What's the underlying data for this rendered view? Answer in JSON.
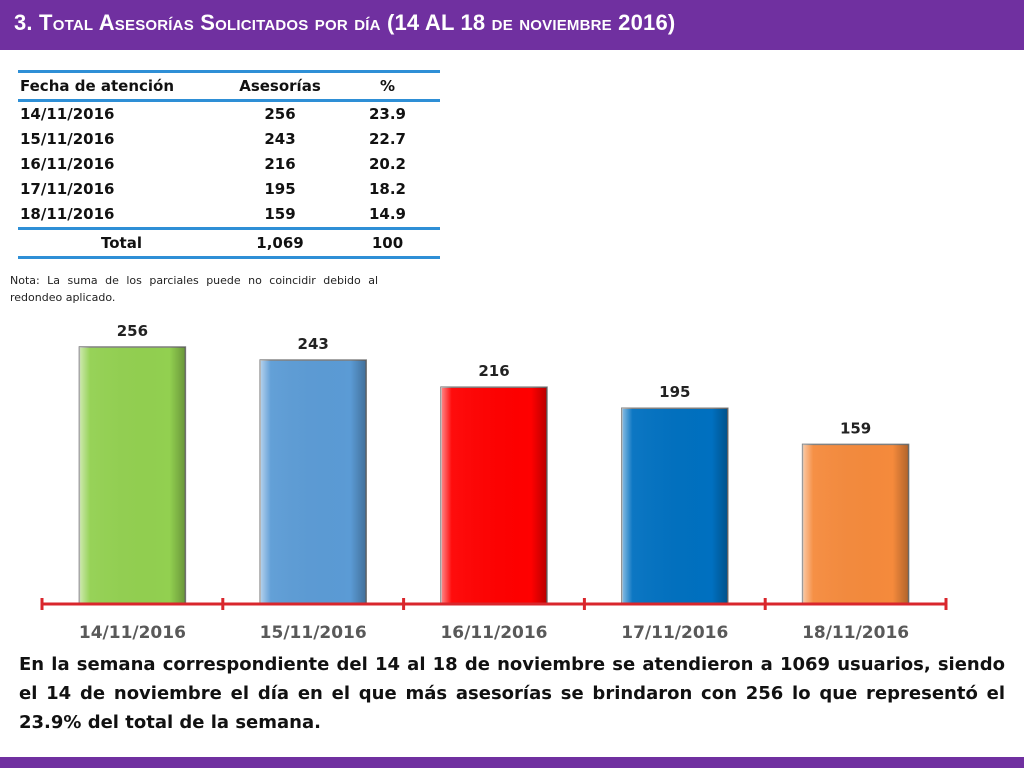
{
  "header": {
    "title": "3.  Total Asesorías Solicitados por día  (14 AL 18 de noviembre  2016)"
  },
  "table": {
    "headers": [
      "Fecha de atención",
      "Asesorías",
      "%"
    ],
    "rows": [
      {
        "date": "14/11/2016",
        "count": "256",
        "pct": "23.9"
      },
      {
        "date": "15/11/2016",
        "count": "243",
        "pct": "22.7"
      },
      {
        "date": "16/11/2016",
        "count": "216",
        "pct": "20.2"
      },
      {
        "date": "17/11/2016",
        "count": "195",
        "pct": "18.2"
      },
      {
        "date": "18/11/2016",
        "count": "159",
        "pct": "14.9"
      }
    ],
    "total": {
      "label": "Total",
      "count": "1,069",
      "pct": "100"
    }
  },
  "note": "Nota: La suma de los parciales puede no coincidir debido al redondeo aplicado.",
  "summary": "En la semana correspondiente del 14 al 18 de noviembre se atendieron a 1069 usuarios, siendo el 14 de noviembre el día en el que más asesorías se brindaron con 256 lo que representó el 23.9% del total de la semana.",
  "chart_data": {
    "type": "bar",
    "title": "",
    "xlabel": "",
    "ylabel": "",
    "categories": [
      "14/11/2016",
      "15/11/2016",
      "16/11/2016",
      "17/11/2016",
      "18/11/2016"
    ],
    "values": [
      256,
      243,
      216,
      195,
      159
    ],
    "colors": [
      "#92d050",
      "#5b9bd5",
      "#ff0000",
      "#0070c0",
      "#f58a3c"
    ],
    "axis_color": "#d9262c",
    "tick_label_color": "#595959",
    "ylim": [
      0,
      256
    ],
    "grid": false,
    "legend": "none",
    "data_labels": true
  },
  "colors": {
    "header_bg": "#7030a0",
    "table_rule": "#2e8fd6"
  }
}
